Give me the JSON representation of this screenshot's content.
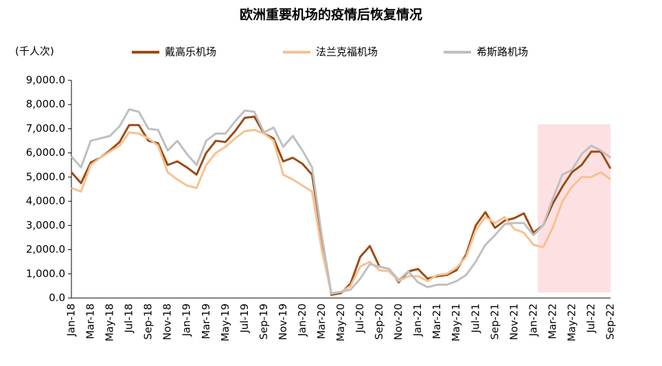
{
  "chart_data": {
    "type": "line",
    "title": "欧洲重要机场的疫情后恢复情况",
    "y_label": "(千人次)",
    "categories": [
      "Jan-18",
      null,
      "Mar-18",
      null,
      "May-18",
      null,
      "Jul-18",
      null,
      "Sep-18",
      null,
      "Nov-18",
      null,
      "Jan-19",
      null,
      "Mar-19",
      null,
      "May-19",
      null,
      "Jul-19",
      null,
      "Sep-19",
      null,
      "Nov-19",
      null,
      "Jan-20",
      null,
      "Mar-20",
      null,
      "May-20",
      null,
      "Jul-20",
      null,
      "Sep-20",
      null,
      "Nov-20",
      null,
      "Jan-21",
      null,
      "Mar-21",
      null,
      "May-21",
      null,
      "Jul-21",
      null,
      "Sep-21",
      null,
      "Nov-21",
      null,
      "Jan-22",
      null,
      "Mar-22",
      null,
      "May-22",
      null,
      "Jul-22",
      null,
      "Sep-22"
    ],
    "series": [
      {
        "name": "戴高乐机场",
        "color": "#9c4a12",
        "values": [
          5200,
          4750,
          5600,
          5800,
          6100,
          6450,
          7150,
          7150,
          6500,
          6400,
          5500,
          5650,
          5400,
          5100,
          6000,
          6500,
          6450,
          6900,
          7450,
          7500,
          6800,
          6600,
          5650,
          5800,
          5550,
          5100,
          2500,
          130,
          200,
          600,
          1700,
          2150,
          1300,
          1200,
          650,
          1100,
          1200,
          800,
          900,
          950,
          1150,
          1800,
          3000,
          3550,
          2900,
          3200,
          3300,
          3500,
          2700,
          3000,
          3900,
          4600,
          5200,
          5500,
          6050,
          6050,
          5350
        ]
      },
      {
        "name": "法兰克福机场",
        "color": "#f7c08f",
        "values": [
          4550,
          4400,
          5500,
          5800,
          6050,
          6300,
          6850,
          6800,
          6600,
          6300,
          5200,
          4900,
          4650,
          4550,
          5500,
          6000,
          6250,
          6600,
          6900,
          6950,
          6800,
          6500,
          5100,
          4900,
          4650,
          4400,
          2000,
          180,
          250,
          500,
          1300,
          1500,
          1150,
          1100,
          700,
          900,
          900,
          700,
          950,
          1000,
          1250,
          1700,
          2800,
          3350,
          3100,
          3350,
          2850,
          2700,
          2200,
          2100,
          2900,
          4000,
          4600,
          5000,
          5000,
          5200,
          4900
        ]
      },
      {
        "name": "希斯路机场",
        "color": "#bfbfbf",
        "values": [
          5850,
          5400,
          6500,
          6600,
          6700,
          7100,
          7800,
          7700,
          7000,
          6950,
          6100,
          6500,
          5950,
          5500,
          6500,
          6800,
          6800,
          7300,
          7750,
          7700,
          6850,
          7050,
          6250,
          6700,
          6100,
          5400,
          2600,
          200,
          250,
          350,
          800,
          1400,
          1300,
          1200,
          750,
          1100,
          650,
          450,
          550,
          550,
          700,
          950,
          1500,
          2200,
          2600,
          3050,
          3100,
          3100,
          2600,
          3000,
          4100,
          5100,
          5300,
          5950,
          6300,
          6100,
          5800
        ]
      }
    ],
    "ylim": [
      0,
      9000
    ],
    "yticks": [
      {
        "value": 0,
        "label": "0.0"
      },
      {
        "value": 1000,
        "label": "1,000.0"
      },
      {
        "value": 2000,
        "label": "2,000.0"
      },
      {
        "value": 3000,
        "label": "3,000.0"
      },
      {
        "value": 4000,
        "label": "4,000.0"
      },
      {
        "value": 5000,
        "label": "5,000.0"
      },
      {
        "value": 6000,
        "label": "6,000.0"
      },
      {
        "value": 7000,
        "label": "7,000.0"
      },
      {
        "value": 8000,
        "label": "8,000.0"
      },
      {
        "value": 9000,
        "label": "9,000.0"
      }
    ],
    "legend": "top"
  }
}
